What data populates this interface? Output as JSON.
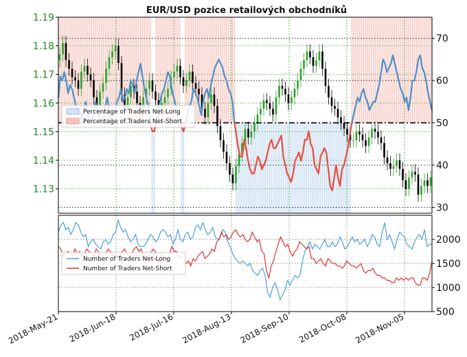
{
  "chart_data": [
    {
      "type": "line",
      "panel": "top",
      "title": "EUR/USD pozice retailových obchodníků",
      "left_axis": {
        "ticks": [
          "1.19",
          "1.18",
          "1.17",
          "1.16",
          "1.15",
          "1.14",
          "1.13"
        ],
        "ylim": [
          1.1215,
          1.19
        ],
        "tick_color": "#1e8a1e"
      },
      "right_axis": {
        "ticks": [
          "70",
          "60",
          "50",
          "40",
          "30"
        ],
        "ylim": [
          28.6,
          75
        ]
      },
      "reference_line": {
        "value": 50,
        "style": "dash-dot",
        "color": "#000000"
      },
      "legend": {
        "placement": "left",
        "entries": [
          {
            "label": "Percentage of Traders Net-Long",
            "color": "#cfe3f5"
          },
          {
            "label": "Percentage of Traders Net-Short",
            "color": "#f6c4bd"
          }
        ]
      },
      "percent_net_long": {
        "color": "#4a90c8",
        "x_index_step": 1,
        "values": [
          56,
          61,
          60,
          62,
          60,
          57,
          59,
          58,
          56,
          54,
          52,
          53,
          51,
          53,
          55,
          52,
          50,
          50,
          52,
          55,
          53,
          51,
          50,
          51,
          54,
          56,
          53,
          50,
          51,
          53,
          55,
          56,
          58,
          55,
          56,
          58,
          57,
          60,
          59,
          57,
          60,
          62,
          64,
          61,
          58,
          56,
          54,
          50,
          48,
          48,
          50,
          53,
          55,
          57,
          58,
          60,
          62,
          61,
          58,
          56,
          54,
          51,
          50,
          49,
          48,
          50,
          52,
          54,
          55,
          58,
          57,
          56,
          54,
          52,
          55,
          57,
          58,
          56,
          59,
          61,
          63,
          64,
          65,
          64,
          63,
          61,
          60,
          58,
          57,
          55,
          50,
          47,
          44,
          42,
          42,
          46,
          44,
          41,
          39,
          38,
          38,
          40,
          42,
          41,
          39,
          40,
          41,
          43,
          45,
          46,
          44,
          44,
          45,
          46,
          47,
          42,
          40,
          38,
          37,
          36,
          38,
          41,
          42,
          43,
          41,
          43,
          46,
          46,
          48,
          45,
          44,
          40,
          39,
          38,
          42,
          43,
          44,
          43,
          39,
          35,
          34,
          37,
          40,
          37,
          35,
          39,
          40,
          42,
          44,
          47,
          50,
          52,
          54,
          56,
          55,
          57,
          58,
          56,
          55,
          53,
          54,
          55,
          55,
          57,
          59,
          62,
          65,
          64,
          62,
          63,
          64,
          66,
          64,
          62,
          60,
          58,
          57,
          55,
          56,
          53,
          56,
          60,
          60,
          62,
          65,
          66,
          63,
          62,
          60,
          57,
          55,
          53
        ]
      },
      "price_candles": {
        "color_up": "#2ca02c",
        "color_down": "#000000",
        "close": [
          1.177,
          1.181,
          1.175,
          1.172,
          1.169,
          1.168,
          1.165,
          1.171,
          1.173,
          1.17,
          1.168,
          1.162,
          1.159,
          1.164,
          1.167,
          1.172,
          1.176,
          1.178,
          1.18,
          1.174,
          1.163,
          1.158,
          1.162,
          1.166,
          1.164,
          1.16,
          1.157,
          1.162,
          1.165,
          1.168,
          1.164,
          1.161,
          1.157,
          1.16,
          1.162,
          1.165,
          1.169,
          1.171,
          1.173,
          1.169,
          1.166,
          1.168,
          1.171,
          1.167,
          1.165,
          1.163,
          1.158,
          1.155,
          1.16,
          1.163,
          1.159,
          1.152,
          1.147,
          1.143,
          1.139,
          1.135,
          1.132,
          1.138,
          1.142,
          1.146,
          1.151,
          1.148,
          1.15,
          1.153,
          1.156,
          1.158,
          1.161,
          1.16,
          1.158,
          1.156,
          1.162,
          1.166,
          1.165,
          1.163,
          1.16,
          1.162,
          1.165,
          1.168,
          1.172,
          1.175,
          1.178,
          1.176,
          1.173,
          1.175,
          1.178,
          1.172,
          1.166,
          1.162,
          1.159,
          1.158,
          1.155,
          1.153,
          1.151,
          1.149,
          1.147,
          1.147,
          1.15,
          1.149,
          1.147,
          1.145,
          1.148,
          1.151,
          1.15,
          1.148,
          1.146,
          1.141,
          1.139,
          1.137,
          1.138,
          1.14,
          1.137,
          1.133,
          1.13,
          1.134,
          1.136,
          1.135,
          1.128,
          1.131,
          1.133,
          1.131,
          1.134
        ],
        "note": "Daily EUR/USD candlesticks plotted on the left axis."
      }
    },
    {
      "type": "line",
      "panel": "bottom",
      "right_axis": {
        "ticks": [
          "2000",
          "1500",
          "1000",
          "500"
        ],
        "ylim": [
          500,
          2500
        ]
      },
      "x_ticks": [
        "2018-May-21",
        "2018-Jun-18",
        "2018-Jul-16",
        "2018-Aug-13",
        "2018-Sep-10",
        "2018-Oct-08",
        "2018-Nov-05"
      ],
      "legend": {
        "placement": "left",
        "entries": [
          {
            "label": "Number of Traders Net-Long",
            "color": "#4a9fe0"
          },
          {
            "label": "Number of Traders Net-Short",
            "color": "#e03030"
          }
        ]
      },
      "net_long": {
        "color": "#4a9fe0",
        "values": [
          2150,
          2300,
          2350,
          2200,
          2250,
          2100,
          2200,
          2350,
          2300,
          2150,
          2050,
          2100,
          1850,
          1950,
          2000,
          1900,
          1850,
          1800,
          1950,
          2000,
          1900,
          1950,
          2100,
          2150,
          2400,
          2250,
          2150,
          2200,
          2050,
          1950,
          2000,
          2100,
          1900,
          1850,
          1850,
          1900,
          2000,
          2100,
          2050,
          1950,
          2000,
          2150,
          2200,
          2150,
          2050,
          2100,
          1900,
          2000,
          2200,
          2000,
          1950,
          2100,
          2150,
          2000,
          2050,
          2250,
          2300,
          2200,
          2350,
          2200,
          2100,
          2150,
          2250,
          2050,
          2000,
          2050,
          2200,
          2150,
          1950,
          1850,
          1700,
          1600,
          1550,
          1500,
          1550,
          1500,
          1450,
          1500,
          1350,
          1300,
          1250,
          1350,
          1400,
          1250,
          900,
          800,
          1000,
          1100,
          950,
          750,
          850,
          950,
          1150,
          1050,
          1150,
          1250,
          1200,
          1250,
          1550,
          1750,
          1850,
          1950,
          1800,
          1900,
          1850,
          1800,
          1900,
          2000,
          1850,
          1850,
          1950,
          1850,
          1900,
          2050,
          1950,
          1800,
          1850,
          1950,
          2050,
          1950,
          2000,
          1900,
          1950,
          2000,
          1850,
          1950,
          2100,
          2050,
          1900,
          1850,
          2150,
          2350,
          2000,
          2100,
          1950,
          1800,
          2000,
          2150,
          2100,
          2050,
          1900,
          1850,
          1800,
          1950,
          2050,
          2100,
          2000,
          2200,
          1850,
          1900,
          1900
        ]
      },
      "net_short": {
        "color": "#e03030",
        "values": [
          1850,
          1800,
          1650,
          1700,
          1750,
          1700,
          1650,
          1800,
          1700,
          1750,
          1650,
          1700,
          1800,
          1750,
          1700,
          1650,
          1800,
          1750,
          1550,
          1650,
          1700,
          1800,
          1750,
          1650,
          1700,
          1600,
          1650,
          1750,
          1800,
          1700,
          1650,
          1700,
          1800,
          1850,
          1750,
          1800,
          1650,
          1550,
          1650,
          1700,
          1800,
          1750,
          1650,
          1500,
          1700,
          1600,
          1550,
          1700,
          1850,
          1750,
          1750,
          1600,
          1650,
          1600,
          1500,
          1550,
          1450,
          1600,
          1550,
          1650,
          1700,
          1750,
          1600,
          1650,
          1700,
          1800,
          1750,
          1950,
          2000,
          2150,
          2050,
          2100,
          2000,
          2050,
          2150,
          2200,
          2100,
          2050,
          2100,
          2000,
          1950,
          2000,
          2150,
          2050,
          1950,
          2000,
          1750,
          1700,
          1350,
          1200,
          1450,
          1550,
          1750,
          1900,
          2050,
          1950,
          1850,
          1900,
          1750,
          1650,
          1750,
          1800,
          1950,
          1900,
          1850,
          1800,
          1850,
          1600,
          1600,
          1500,
          1550,
          1600,
          1500,
          1450,
          1600,
          1550,
          1500,
          1500,
          1450,
          1450,
          1400,
          1450,
          1550,
          1500,
          1450,
          1450,
          1400,
          1450,
          1500,
          1350,
          1300,
          1350,
          1350,
          1400,
          1300,
          1250,
          1250,
          1200,
          1200,
          1150,
          1150,
          1100,
          1100,
          1200,
          1150,
          1200,
          1150,
          1200,
          1150,
          1200,
          1200,
          1100,
          1050,
          1050,
          1200,
          1200,
          1150,
          1300,
          1550
        ]
      }
    }
  ]
}
